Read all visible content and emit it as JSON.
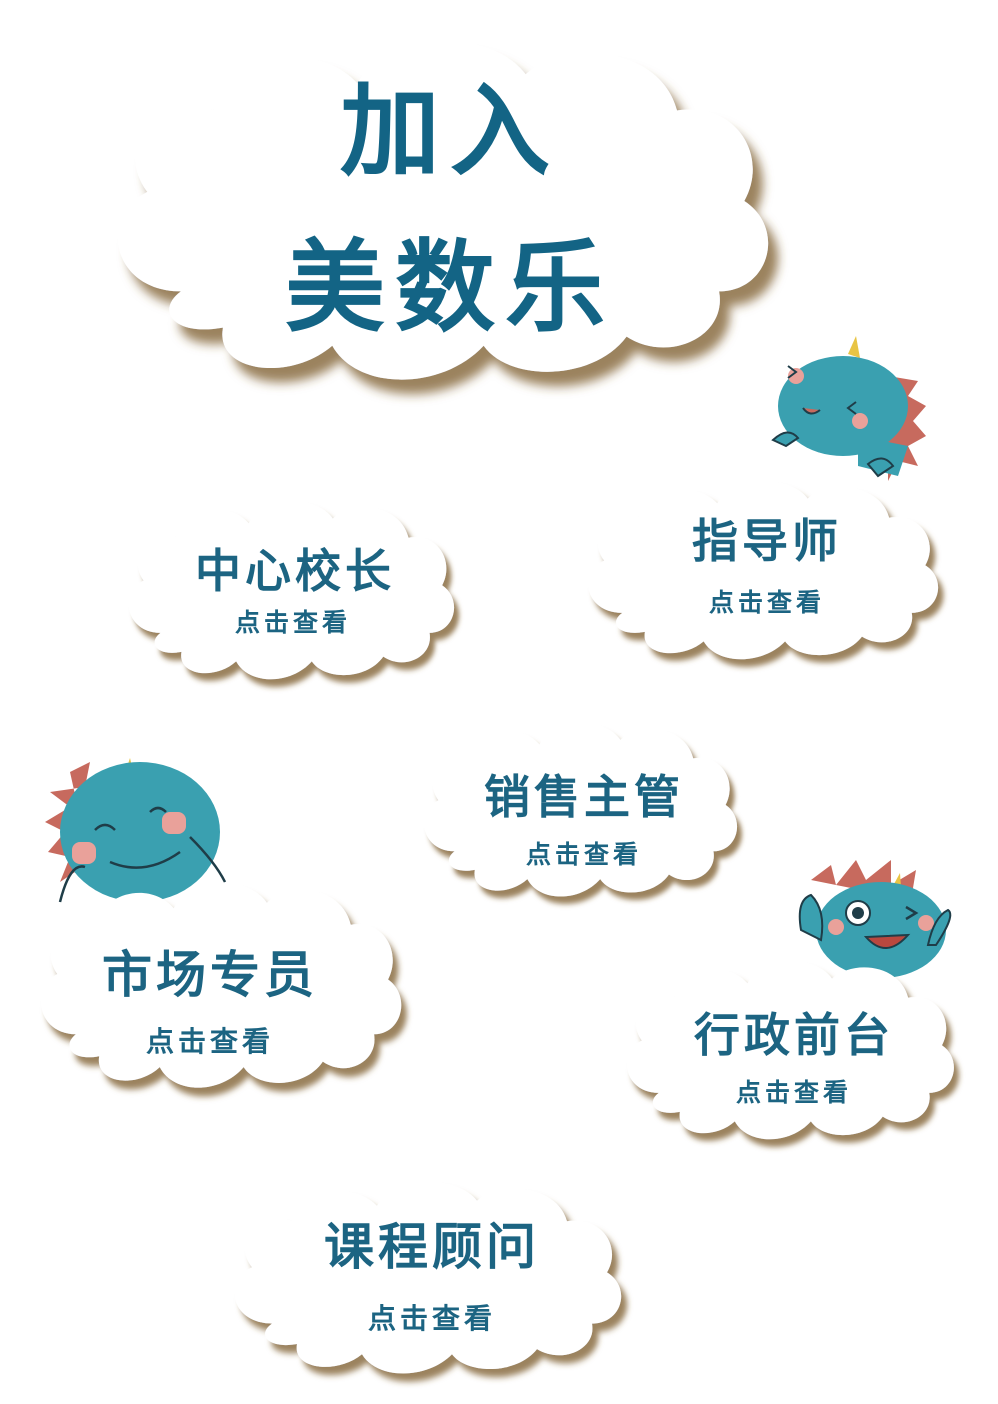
{
  "hero": {
    "line1": "加入",
    "line2": "美数乐"
  },
  "roles": [
    {
      "title": "中心校长",
      "link": "点击查看"
    },
    {
      "title": "指导师",
      "link": "点击查看"
    },
    {
      "title": "销售主管",
      "link": "点击查看"
    },
    {
      "title": "市场专员",
      "link": "点击查看"
    },
    {
      "title": "行政前台",
      "link": "点击查看"
    },
    {
      "title": "课程顾问",
      "link": "点击查看"
    }
  ],
  "colors": {
    "text": "#1c6482",
    "cloud": "#ffffff",
    "cloud_shadow": "#8a6a3a",
    "dino_body": "#3aa0b0",
    "dino_spikes": "#c76a5e",
    "dino_horn": "#e8c444"
  },
  "icons": [
    "dino-mascot-icon",
    "dino-mascot-icon",
    "dino-mascot-icon"
  ]
}
